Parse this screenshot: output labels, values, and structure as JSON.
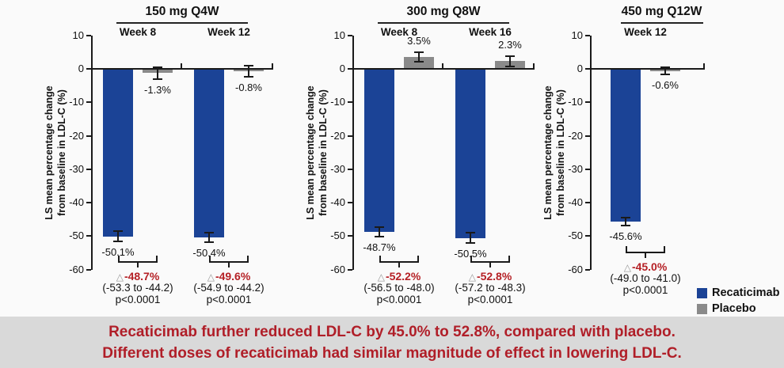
{
  "figure": {
    "ylabel_line1": "LS mean percentage change",
    "ylabel_line2": "from baseline in LDL-C (%)",
    "delta_prefix": "△"
  },
  "chart_data": [
    {
      "type": "bar",
      "title": "150 mg Q4W",
      "ylabel": "LS mean percentage change from baseline in LDL-C (%)",
      "ylim": [
        -60,
        10
      ],
      "yticks": [
        10,
        0,
        -10,
        -20,
        -30,
        -40,
        -50,
        -60
      ],
      "groups": [
        {
          "week": "Week 8",
          "series": [
            {
              "name": "Recaticimab",
              "value": -50.1,
              "label": "-50.1%",
              "err": 1.8
            },
            {
              "name": "Placebo",
              "value": -1.3,
              "label": "-1.3%",
              "err": 2.1
            }
          ],
          "difference": {
            "delta": "-48.7%",
            "ci": "(-53.3 to -44.2)",
            "p": "p<0.0001"
          }
        },
        {
          "week": "Week 12",
          "series": [
            {
              "name": "Recaticimab",
              "value": -50.4,
              "label": "-50.4%",
              "err": 1.7
            },
            {
              "name": "Placebo",
              "value": -0.8,
              "label": "-0.8%",
              "err": 1.9
            }
          ],
          "difference": {
            "delta": "-49.6%",
            "ci": "(-54.9 to -44.2)",
            "p": "p<0.0001"
          }
        }
      ]
    },
    {
      "type": "bar",
      "title": "300 mg Q8W",
      "ylabel": "LS mean percentage change from baseline in LDL-C (%)",
      "ylim": [
        -60,
        10
      ],
      "yticks": [
        10,
        0,
        -10,
        -20,
        -30,
        -40,
        -50,
        -60
      ],
      "groups": [
        {
          "week": "Week 8",
          "series": [
            {
              "name": "Recaticimab",
              "value": -48.7,
              "label": "-48.7%",
              "err": 1.6
            },
            {
              "name": "Placebo",
              "value": 3.5,
              "label": "3.5%",
              "err": 1.7
            }
          ],
          "difference": {
            "delta": "-52.2%",
            "ci": "(-56.5 to -48.0)",
            "p": "p<0.0001"
          }
        },
        {
          "week": "Week 16",
          "series": [
            {
              "name": "Recaticimab",
              "value": -50.5,
              "label": "-50.5%",
              "err": 1.7
            },
            {
              "name": "Placebo",
              "value": 2.3,
              "label": "2.3%",
              "err": 1.8
            }
          ],
          "difference": {
            "delta": "-52.8%",
            "ci": "(-57.2 to -48.3)",
            "p": "p<0.0001"
          }
        }
      ]
    },
    {
      "type": "bar",
      "title": "450 mg Q12W",
      "ylabel": "LS mean percentage change from baseline in LDL-C (%)",
      "ylim": [
        -60,
        10
      ],
      "yticks": [
        10,
        0,
        -10,
        -20,
        -30,
        -40,
        -50,
        -60
      ],
      "groups": [
        {
          "week": "Week 12",
          "series": [
            {
              "name": "Recaticimab",
              "value": -45.6,
              "label": "-45.6%",
              "err": 1.4
            },
            {
              "name": "Placebo",
              "value": -0.6,
              "label": "-0.6%",
              "err": 1.3
            }
          ],
          "difference": {
            "delta": "-45.0%",
            "ci": "(-49.0 to -41.0)",
            "p": "p<0.0001"
          }
        }
      ]
    }
  ],
  "legend": {
    "items": [
      {
        "label": "Recaticimab",
        "color": "#1b4396"
      },
      {
        "label": "Placebo",
        "color": "#8a8a8a"
      }
    ]
  },
  "banner": {
    "line1": "Recaticimab further reduced LDL-C by 45.0% to 52.8%, compared with placebo.",
    "line2": "Different doses of recaticimab had similar magnitude of effect in lowering LDL-C."
  },
  "colors": {
    "bar_blue": "#1b4396",
    "bar_gray": "#8a8a8a",
    "axis_black": "#1a1a1a",
    "delta_red": "#b52025",
    "triangle_gray": "#999999",
    "banner_bg": "#d9d9d9",
    "banner_text": "#b01e28"
  }
}
